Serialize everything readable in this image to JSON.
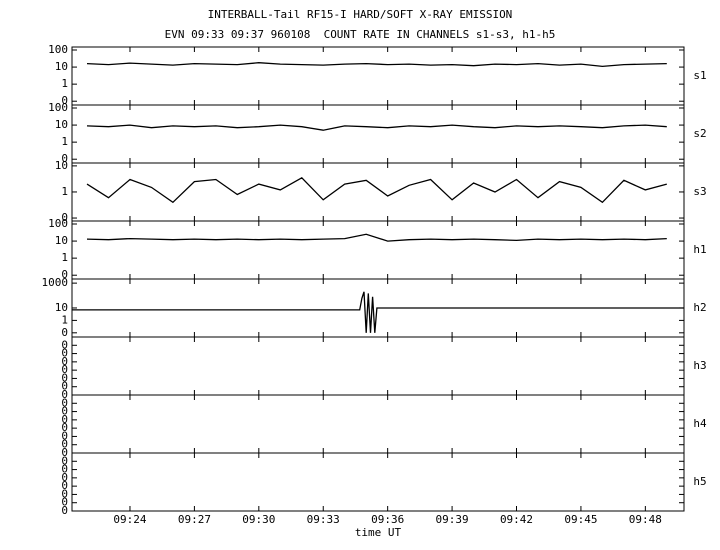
{
  "title": "INTERBALL-Tail RF15-I HARD/SOFT X-RAY EMISSION",
  "subtitle": "EVN 09:33 09:37 960108  COUNT RATE IN CHANNELS s1-s3, h1-h5",
  "xlabel": "time UT",
  "xlim": [
    561.3,
    589.8
  ],
  "xticks": [
    {
      "value": 564,
      "label": "09:24"
    },
    {
      "value": 567,
      "label": "09:27"
    },
    {
      "value": 570,
      "label": "09:30"
    },
    {
      "value": 573,
      "label": "09:33"
    },
    {
      "value": 576,
      "label": "09:36"
    },
    {
      "value": 579,
      "label": "09:39"
    },
    {
      "value": 582,
      "label": "09:42"
    },
    {
      "value": 585,
      "label": "09:45"
    },
    {
      "value": 588,
      "label": "09:48"
    }
  ],
  "chart_data": [
    {
      "type": "line",
      "label": "s1",
      "log": true,
      "color": "#000000",
      "ylim": [
        0.06,
        150
      ],
      "yticks": [
        100,
        10,
        1,
        {
          "value": 0.1,
          "label": "0"
        }
      ],
      "x": [
        562,
        563,
        564,
        565,
        566,
        567,
        568,
        569,
        570,
        571,
        572,
        573,
        574,
        575,
        576,
        577,
        578,
        579,
        580,
        581,
        582,
        583,
        584,
        585,
        586,
        587,
        588,
        589
      ],
      "values": [
        16,
        14,
        17,
        15,
        13,
        16,
        15,
        14,
        18,
        15,
        14,
        13,
        15,
        16,
        14,
        15,
        13,
        14,
        12,
        15,
        14,
        16,
        13,
        15,
        11,
        14,
        15,
        16
      ]
    },
    {
      "type": "line",
      "label": "s2",
      "log": true,
      "color": "#000000",
      "ylim": [
        0.06,
        150
      ],
      "yticks": [
        100,
        10,
        1,
        {
          "value": 0.1,
          "label": "0"
        }
      ],
      "x": [
        562,
        563,
        564,
        565,
        566,
        567,
        568,
        569,
        570,
        571,
        572,
        573,
        574,
        575,
        576,
        577,
        578,
        579,
        580,
        581,
        582,
        583,
        584,
        585,
        586,
        587,
        588,
        589
      ],
      "values": [
        9,
        8,
        10,
        7,
        9,
        8,
        9,
        7,
        8,
        10,
        8,
        5,
        9,
        8,
        7,
        9,
        8,
        10,
        8,
        7,
        9,
        8,
        9,
        8,
        7,
        9,
        10,
        8
      ]
    },
    {
      "type": "line",
      "label": "s3",
      "log": true,
      "color": "#000000",
      "ylim": [
        0.077,
        12.9
      ],
      "yticks": [
        10,
        1,
        {
          "value": 0.1,
          "label": "0"
        }
      ],
      "x": [
        562,
        563,
        564,
        565,
        566,
        567,
        568,
        569,
        570,
        571,
        572,
        573,
        574,
        575,
        576,
        577,
        578,
        579,
        580,
        581,
        582,
        583,
        584,
        585,
        586,
        587,
        588,
        589
      ],
      "values": [
        2,
        0.6,
        3,
        1.5,
        0.4,
        2.5,
        3,
        0.8,
        2,
        1.2,
        3.5,
        0.5,
        2,
        2.8,
        0.7,
        1.8,
        3,
        0.5,
        2.2,
        1,
        3,
        0.6,
        2.5,
        1.5,
        0.4,
        2.8,
        1.2,
        2
      ]
    },
    {
      "type": "line",
      "label": "h1",
      "log": true,
      "color": "#000000",
      "ylim": [
        0.06,
        150
      ],
      "yticks": [
        100,
        10,
        1,
        {
          "value": 0.1,
          "label": "0"
        }
      ],
      "x": [
        562,
        563,
        564,
        565,
        566,
        567,
        568,
        569,
        570,
        571,
        572,
        573,
        574,
        575,
        576,
        577,
        578,
        579,
        580,
        581,
        582,
        583,
        584,
        585,
        586,
        587,
        588,
        589
      ],
      "values": [
        13,
        12,
        14,
        13,
        12,
        13,
        12,
        13,
        12,
        13,
        12,
        13,
        14,
        25,
        10,
        12,
        13,
        12,
        13,
        12,
        11,
        13,
        12,
        13,
        12,
        13,
        12,
        14
      ]
    },
    {
      "type": "line",
      "label": "h2",
      "log": true,
      "color": "#000000",
      "ylim": [
        0.046,
        2150
      ],
      "yticks": [
        1000,
        10,
        1,
        {
          "value": 0.1,
          "label": "0"
        }
      ],
      "x": [
        561.3,
        574.7,
        574.8,
        574.9,
        575.0,
        575.1,
        575.2,
        575.3,
        575.4,
        575.5,
        589.8
      ],
      "values": [
        7,
        7,
        60,
        200,
        0.1,
        150,
        0.1,
        80,
        0.1,
        10,
        10
      ]
    },
    {
      "type": "line",
      "label": "h3",
      "log": false,
      "ylim": [
        0,
        7
      ],
      "yticks": [
        {
          "value": 0,
          "label": "0"
        },
        {
          "value": 1,
          "label": "0"
        },
        {
          "value": 2,
          "label": "0"
        },
        {
          "value": 3,
          "label": "0"
        },
        {
          "value": 4,
          "label": "0"
        },
        {
          "value": 5,
          "label": "0"
        },
        {
          "value": 6,
          "label": "0"
        }
      ]
    },
    {
      "type": "line",
      "label": "h4",
      "log": false,
      "ylim": [
        0,
        7
      ],
      "yticks": [
        {
          "value": 0,
          "label": "0"
        },
        {
          "value": 1,
          "label": "0"
        },
        {
          "value": 2,
          "label": "0"
        },
        {
          "value": 3,
          "label": "0"
        },
        {
          "value": 4,
          "label": "0"
        },
        {
          "value": 5,
          "label": "0"
        },
        {
          "value": 6,
          "label": "0"
        }
      ]
    },
    {
      "type": "line",
      "label": "h5",
      "log": false,
      "ylim": [
        0,
        7
      ],
      "yticks": [
        {
          "value": 0,
          "label": "0"
        },
        {
          "value": 1,
          "label": "0"
        },
        {
          "value": 2,
          "label": "0"
        },
        {
          "value": 3,
          "label": "0"
        },
        {
          "value": 4,
          "label": "0"
        },
        {
          "value": 5,
          "label": "0"
        },
        {
          "value": 6,
          "label": "0"
        }
      ]
    }
  ]
}
